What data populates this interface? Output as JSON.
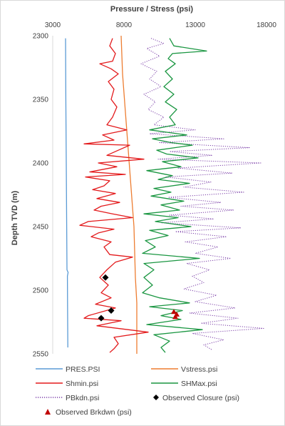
{
  "chart_data": {
    "type": "line",
    "xlabel": "Pressure / Stress (psi)",
    "ylabel": "Depth TVD (m)",
    "x_ticks": [
      3000,
      8000,
      13000,
      18000
    ],
    "y_ticks": [
      2300,
      2350,
      2400,
      2450,
      2500,
      2550
    ],
    "xlim": [
      3000,
      18000
    ],
    "ylim": [
      2300,
      2550
    ],
    "y_inverted": true,
    "x_axis_position": "top",
    "legend_position": "bottom",
    "legend_labels": {
      "pres": "PRES.PSI",
      "vstress": "Vstress.psi",
      "shmin": "Shmin.psi",
      "shmax": "SHMax.psi",
      "pbkdn": "PBkdn.psi",
      "closure": "Observed Closure (psi)",
      "brkdwn": "Observed Brkdwn (psi)"
    },
    "colors": {
      "pres": "#5b9bd5",
      "vstress": "#ed7d31",
      "shmin": "#e31a1c",
      "shmax": "#1a9641",
      "pbkdn": "#7b3fa8",
      "closure": "#000000",
      "brkdwn": "#c00000"
    },
    "series": [
      {
        "key": "pres",
        "style": "solid",
        "points": [
          [
            3900,
            2302
          ],
          [
            3920,
            2350
          ],
          [
            3950,
            2400
          ],
          [
            3980,
            2450
          ],
          [
            4000,
            2484
          ],
          [
            4080,
            2486
          ],
          [
            4030,
            2489
          ],
          [
            4040,
            2510
          ],
          [
            4060,
            2545
          ]
        ]
      },
      {
        "key": "vstress",
        "style": "solid",
        "points": [
          [
            7800,
            2300
          ],
          [
            7900,
            2330
          ],
          [
            8100,
            2360
          ],
          [
            8300,
            2390
          ],
          [
            8500,
            2420
          ],
          [
            8700,
            2450
          ],
          [
            8750,
            2470
          ],
          [
            8800,
            2490
          ],
          [
            8900,
            2510
          ],
          [
            8900,
            2530
          ],
          [
            8900,
            2550
          ]
        ]
      },
      {
        "key": "shmin",
        "style": "solid",
        "points": [
          [
            7200,
            2302
          ],
          [
            7000,
            2308
          ],
          [
            7400,
            2314
          ],
          [
            7200,
            2320
          ],
          [
            6300,
            2322
          ],
          [
            7100,
            2326
          ],
          [
            7600,
            2330
          ],
          [
            6900,
            2336
          ],
          [
            7300,
            2342
          ],
          [
            7100,
            2350
          ],
          [
            7500,
            2356
          ],
          [
            7200,
            2364
          ],
          [
            6800,
            2370
          ],
          [
            8200,
            2374
          ],
          [
            6500,
            2378
          ],
          [
            7300,
            2382
          ],
          [
            5200,
            2385
          ],
          [
            8400,
            2386
          ],
          [
            7600,
            2390
          ],
          [
            6800,
            2394
          ],
          [
            9400,
            2397
          ],
          [
            6200,
            2400
          ],
          [
            7500,
            2403
          ],
          [
            5600,
            2407
          ],
          [
            8100,
            2409
          ],
          [
            5300,
            2411
          ],
          [
            7000,
            2414
          ],
          [
            6600,
            2418
          ],
          [
            5800,
            2421
          ],
          [
            7400,
            2424
          ],
          [
            6100,
            2428
          ],
          [
            7700,
            2431
          ],
          [
            6400,
            2434
          ],
          [
            5900,
            2437
          ],
          [
            7200,
            2440
          ],
          [
            8600,
            2443
          ],
          [
            5500,
            2446
          ],
          [
            4900,
            2449
          ],
          [
            7300,
            2452
          ],
          [
            6200,
            2455
          ],
          [
            5700,
            2458
          ],
          [
            7100,
            2462
          ],
          [
            6600,
            2466
          ],
          [
            7000,
            2472
          ],
          [
            8600,
            2474
          ],
          [
            7400,
            2478
          ],
          [
            6800,
            2484
          ],
          [
            6300,
            2490
          ],
          [
            6900,
            2496
          ],
          [
            6400,
            2502
          ],
          [
            7100,
            2506
          ],
          [
            6000,
            2511
          ],
          [
            7400,
            2514
          ],
          [
            5500,
            2520
          ],
          [
            5200,
            2522
          ],
          [
            7800,
            2524
          ],
          [
            6100,
            2528
          ],
          [
            9700,
            2533
          ],
          [
            7300,
            2537
          ],
          [
            7600,
            2542
          ],
          [
            7300,
            2546
          ],
          [
            7000,
            2549
          ]
        ]
      },
      {
        "key": "shmax",
        "style": "solid",
        "points": [
          [
            11200,
            2302
          ],
          [
            11500,
            2308
          ],
          [
            13800,
            2312
          ],
          [
            11400,
            2314
          ],
          [
            11100,
            2318
          ],
          [
            11600,
            2322
          ],
          [
            10900,
            2328
          ],
          [
            11400,
            2334
          ],
          [
            10800,
            2340
          ],
          [
            11500,
            2346
          ],
          [
            10900,
            2352
          ],
          [
            11700,
            2358
          ],
          [
            11200,
            2364
          ],
          [
            11600,
            2370
          ],
          [
            9800,
            2374
          ],
          [
            12400,
            2378
          ],
          [
            10000,
            2381
          ],
          [
            11300,
            2384
          ],
          [
            12800,
            2386
          ],
          [
            10300,
            2390
          ],
          [
            11000,
            2393
          ],
          [
            13200,
            2396
          ],
          [
            10700,
            2399
          ],
          [
            12000,
            2403
          ],
          [
            9600,
            2406
          ],
          [
            11400,
            2410
          ],
          [
            10400,
            2413
          ],
          [
            12600,
            2416
          ],
          [
            10100,
            2420
          ],
          [
            11300,
            2423
          ],
          [
            9900,
            2426
          ],
          [
            12200,
            2430
          ],
          [
            10600,
            2433
          ],
          [
            11900,
            2437
          ],
          [
            9400,
            2440
          ],
          [
            11800,
            2443
          ],
          [
            10200,
            2446
          ],
          [
            12700,
            2450
          ],
          [
            9800,
            2453
          ],
          [
            11100,
            2457
          ],
          [
            9500,
            2461
          ],
          [
            10200,
            2466
          ],
          [
            9300,
            2471
          ],
          [
            13300,
            2475
          ],
          [
            9400,
            2479
          ],
          [
            10100,
            2484
          ],
          [
            9400,
            2490
          ],
          [
            10000,
            2496
          ],
          [
            9300,
            2502
          ],
          [
            10500,
            2506
          ],
          [
            12600,
            2510
          ],
          [
            9800,
            2513
          ],
          [
            12100,
            2516
          ],
          [
            10600,
            2520
          ],
          [
            12000,
            2523
          ],
          [
            9600,
            2527
          ],
          [
            13500,
            2531
          ],
          [
            10100,
            2535
          ],
          [
            11200,
            2540
          ],
          [
            10600,
            2545
          ],
          [
            10900,
            2549
          ]
        ]
      },
      {
        "key": "pbkdn",
        "style": "dotted",
        "points": [
          [
            9900,
            2302
          ],
          [
            10800,
            2306
          ],
          [
            9600,
            2310
          ],
          [
            10500,
            2316
          ],
          [
            9200,
            2322
          ],
          [
            10300,
            2328
          ],
          [
            9800,
            2334
          ],
          [
            10600,
            2340
          ],
          [
            9400,
            2346
          ],
          [
            10200,
            2352
          ],
          [
            9700,
            2358
          ],
          [
            10800,
            2364
          ],
          [
            10100,
            2370
          ],
          [
            13000,
            2374
          ],
          [
            9800,
            2377
          ],
          [
            15000,
            2381
          ],
          [
            10500,
            2384
          ],
          [
            16800,
            2388
          ],
          [
            11200,
            2391
          ],
          [
            14200,
            2394
          ],
          [
            10400,
            2397
          ],
          [
            17600,
            2400
          ],
          [
            11800,
            2404
          ],
          [
            15600,
            2408
          ],
          [
            10900,
            2411
          ],
          [
            14100,
            2415
          ],
          [
            12200,
            2419
          ],
          [
            16400,
            2423
          ],
          [
            11100,
            2427
          ],
          [
            14800,
            2431
          ],
          [
            12000,
            2434
          ],
          [
            15700,
            2437
          ],
          [
            11200,
            2441
          ],
          [
            14300,
            2444
          ],
          [
            10600,
            2447
          ],
          [
            16200,
            2451
          ],
          [
            11600,
            2454
          ],
          [
            15200,
            2458
          ],
          [
            12300,
            2462
          ],
          [
            14600,
            2466
          ],
          [
            13000,
            2471
          ],
          [
            15500,
            2475
          ],
          [
            12400,
            2479
          ],
          [
            14000,
            2484
          ],
          [
            12800,
            2489
          ],
          [
            13600,
            2494
          ],
          [
            12200,
            2499
          ],
          [
            14500,
            2504
          ],
          [
            13000,
            2509
          ],
          [
            15800,
            2514
          ],
          [
            12600,
            2518
          ],
          [
            16000,
            2522
          ],
          [
            13400,
            2526
          ],
          [
            17800,
            2530
          ],
          [
            12800,
            2534
          ],
          [
            15000,
            2539
          ],
          [
            13600,
            2543
          ],
          [
            14200,
            2547
          ]
        ]
      }
    ],
    "markers": {
      "closure": [
        [
          6700,
          2490
        ],
        [
          7100,
          2516
        ],
        [
          6400,
          2522
        ]
      ],
      "brkdwn": [
        [
          11500,
          2517
        ],
        [
          11700,
          2519
        ],
        [
          11600,
          2521
        ]
      ]
    }
  }
}
